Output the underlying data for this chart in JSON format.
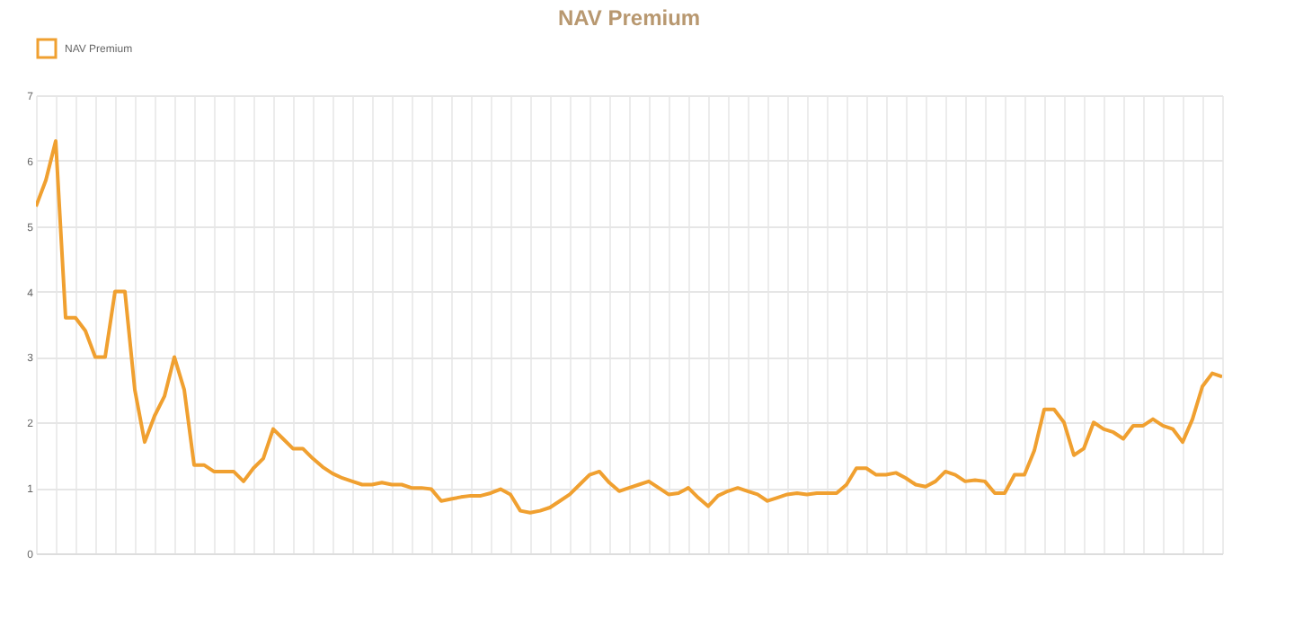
{
  "chart_data": {
    "type": "line",
    "title": "NAV Premium",
    "categories": [
      null,
      null,
      null,
      null,
      null,
      null,
      null,
      null,
      null,
      null,
      null,
      null,
      null,
      null,
      null,
      null,
      null,
      null,
      null,
      null,
      null,
      null,
      null,
      null,
      null,
      null,
      null,
      null,
      null,
      null,
      null,
      null,
      null,
      null,
      null,
      null,
      null,
      null,
      null,
      null,
      null,
      null,
      null,
      null,
      null,
      null,
      null,
      null,
      null,
      null,
      null,
      null,
      null,
      null,
      null,
      null,
      null,
      null,
      null,
      null,
      null,
      null,
      null,
      null,
      null,
      null,
      null,
      null,
      null,
      null,
      null,
      null,
      null,
      null,
      null,
      null,
      null,
      null,
      null,
      null,
      null,
      null,
      null,
      null,
      null,
      null,
      null,
      null,
      null,
      null,
      null,
      null,
      null,
      null,
      null,
      null,
      null,
      null,
      null,
      null,
      null,
      null,
      null,
      null,
      null,
      null,
      null,
      null,
      null,
      null,
      null,
      null,
      null,
      null,
      null,
      null,
      null,
      null,
      null,
      null,
      null
    ],
    "series": [
      {
        "name": "NAV Premium",
        "color": "#f0a030",
        "values": [
          5.3,
          5.7,
          6.3,
          3.6,
          3.6,
          3.4,
          3.0,
          3.0,
          4.0,
          4.0,
          2.5,
          1.7,
          2.1,
          2.4,
          3.0,
          2.5,
          1.35,
          1.35,
          1.25,
          1.25,
          1.25,
          1.1,
          1.3,
          1.45,
          1.9,
          1.75,
          1.6,
          1.6,
          1.45,
          1.32,
          1.22,
          1.15,
          1.1,
          1.05,
          1.05,
          1.08,
          1.05,
          1.05,
          1.0,
          1.0,
          0.98,
          0.8,
          0.83,
          0.86,
          0.88,
          0.88,
          0.92,
          0.98,
          0.9,
          0.65,
          0.62,
          0.65,
          0.7,
          0.8,
          0.9,
          1.05,
          1.2,
          1.25,
          1.08,
          0.95,
          1.0,
          1.05,
          1.1,
          1.0,
          0.9,
          0.92,
          1.0,
          0.85,
          0.72,
          0.88,
          0.95,
          1.0,
          0.95,
          0.9,
          0.8,
          0.85,
          0.9,
          0.92,
          0.9,
          0.92,
          0.92,
          0.92,
          1.05,
          1.3,
          1.3,
          1.2,
          1.2,
          1.23,
          1.15,
          1.05,
          1.02,
          1.1,
          1.25,
          1.2,
          1.1,
          1.12,
          1.1,
          0.92,
          0.92,
          1.2,
          1.2,
          1.57,
          2.2,
          2.2,
          2.0,
          1.5,
          1.6,
          2.0,
          1.9,
          1.85,
          1.75,
          1.95,
          1.95,
          2.05,
          1.95,
          1.9,
          1.7,
          2.05,
          2.55,
          2.75,
          2.7
        ]
      }
    ],
    "ylim": [
      0,
      7
    ],
    "yticks": [
      0,
      1,
      2,
      3,
      4,
      5,
      6,
      7
    ],
    "grid": true,
    "legend": "top",
    "tick_labels": "y"
  }
}
